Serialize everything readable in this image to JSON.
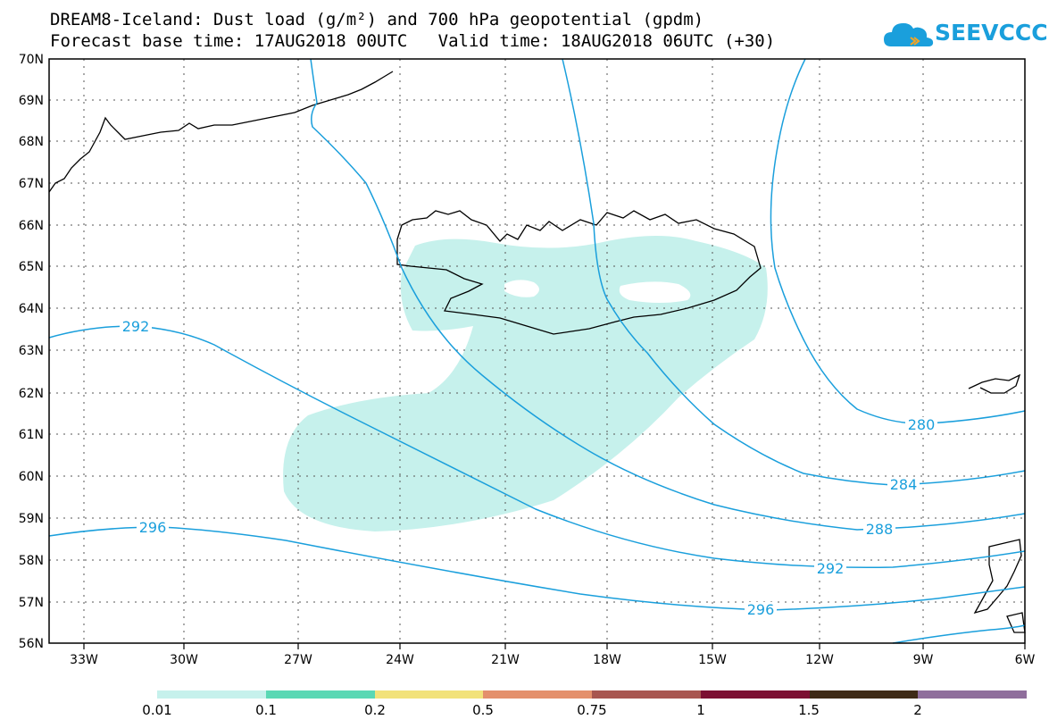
{
  "title_line1": "DREAM8-Iceland: Dust load (g/m²) and 700 hPa geopotential (gpdm)",
  "title_line2": "Forecast base time: 17AUG2018 00UTC   Valid time: 18AUG2018 06UTC (+30)",
  "logo_text": "SEEVCCC",
  "lat_labels": [
    "70N",
    "69N",
    "68N",
    "67N",
    "66N",
    "65N",
    "64N",
    "63N",
    "62N",
    "61N",
    "60N",
    "59N",
    "58N",
    "57N",
    "56N"
  ],
  "lon_labels": [
    "33W",
    "30W",
    "27W",
    "24W",
    "21W",
    "18W",
    "15W",
    "12W",
    "9W",
    "6W"
  ],
  "contour_labels": [
    "292",
    "296",
    "280",
    "284",
    "288",
    "292",
    "296"
  ],
  "legend": {
    "labels": [
      "0.01",
      "0.1",
      "0.2",
      "0.5",
      "0.75",
      "1",
      "1.5",
      "2"
    ],
    "colors": [
      "#c6f1ec",
      "#5ad8b4",
      "#f2e27a",
      "#e4906c",
      "#a85650",
      "#7c0f32",
      "#3e2a16",
      "#8f6e9c"
    ]
  },
  "colors": {
    "contour": "#1a9fdc",
    "dust_low": "#c6f1ec",
    "coast": "#000000"
  }
}
